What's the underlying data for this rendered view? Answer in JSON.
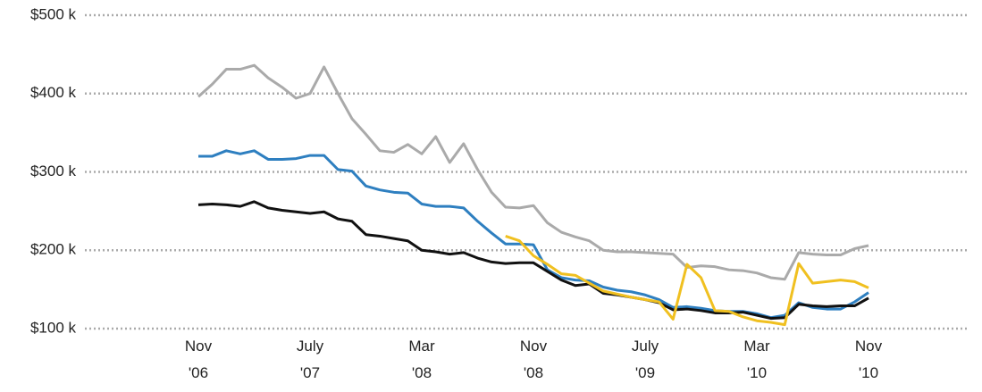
{
  "chart_data": {
    "type": "line",
    "categories": [
      "Nov '06",
      null,
      null,
      null,
      null,
      null,
      null,
      null,
      "July '07",
      null,
      null,
      null,
      null,
      null,
      null,
      null,
      "Mar '08",
      null,
      null,
      null,
      null,
      null,
      null,
      null,
      "Nov '08",
      null,
      null,
      null,
      null,
      null,
      null,
      null,
      "July '09",
      null,
      null,
      null,
      null,
      null,
      null,
      null,
      "Mar '10",
      null,
      null,
      null,
      null,
      null,
      null,
      null,
      "Nov '10"
    ],
    "series": [
      {
        "color": "#aaaaaa",
        "values": [
          396,
          412,
          431,
          431,
          436,
          420,
          408,
          394,
          400,
          434,
          400,
          368,
          348,
          327,
          325,
          335,
          323,
          345,
          312,
          336,
          303,
          274,
          255,
          254,
          257,
          235,
          223,
          217,
          212,
          200,
          198,
          198,
          197,
          196,
          195,
          178,
          180,
          179,
          175,
          174,
          171,
          165,
          163,
          197,
          195,
          194,
          194,
          202,
          206
        ]
      },
      {
        "color": "#2e7fc0",
        "values": [
          320,
          320,
          327,
          323,
          327,
          316,
          316,
          317,
          321,
          321,
          303,
          301,
          282,
          277,
          274,
          273,
          259,
          256,
          256,
          254,
          237,
          222,
          208,
          208,
          207,
          175,
          165,
          162,
          161,
          153,
          149,
          147,
          143,
          137,
          127,
          128,
          126,
          123,
          122,
          122,
          119,
          114,
          117,
          133,
          127,
          125,
          125,
          134,
          146
        ]
      },
      {
        "color": "#111111",
        "values": [
          258,
          259,
          258,
          256,
          262,
          254,
          251,
          249,
          247,
          249,
          240,
          237,
          220,
          218,
          215,
          212,
          200,
          198,
          195,
          197,
          190,
          185,
          183,
          184,
          184,
          173,
          162,
          155,
          157,
          145,
          143,
          140,
          137,
          133,
          124,
          125,
          123,
          120,
          120,
          121,
          117,
          113,
          114,
          131,
          129,
          128,
          129,
          129,
          139
        ]
      },
      {
        "color": "#f0c020",
        "values": [
          null,
          null,
          null,
          null,
          null,
          null,
          null,
          null,
          null,
          null,
          null,
          null,
          null,
          null,
          null,
          null,
          null,
          null,
          null,
          null,
          null,
          null,
          218,
          212,
          193,
          182,
          170,
          168,
          158,
          148,
          144,
          140,
          137,
          134,
          112,
          182,
          165,
          123,
          122,
          115,
          110,
          108,
          105,
          183,
          158,
          160,
          162,
          160,
          152
        ]
      }
    ],
    "ylim": [
      100,
      500
    ],
    "yticks": [
      {
        "value": 100,
        "label": "$100 k"
      },
      {
        "value": 200,
        "label": "$200 k"
      },
      {
        "value": 300,
        "label": "$300 k"
      },
      {
        "value": 400,
        "label": "$400 k"
      },
      {
        "value": 500,
        "label": "$500 k"
      }
    ],
    "grid": true
  }
}
